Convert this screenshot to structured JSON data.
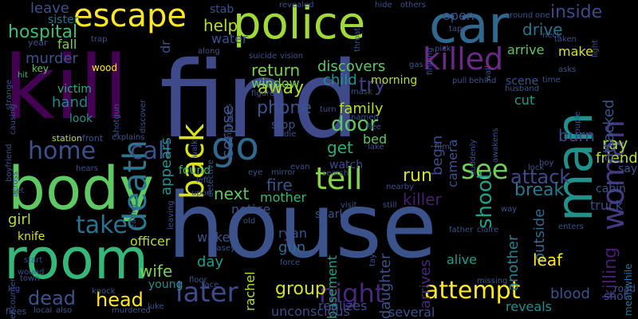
{
  "background": "#000000",
  "words": [
    {
      "text": "find",
      "color": "#3f4a8a"
    },
    {
      "text": "house",
      "color": "#3b528b"
    },
    {
      "text": "kill",
      "color": "#440154"
    },
    {
      "text": "body",
      "color": "#5ec962"
    },
    {
      "text": "room",
      "color": "#35b779"
    },
    {
      "text": "car",
      "color": "#31688e"
    },
    {
      "text": "police",
      "color": "#a0da39"
    },
    {
      "text": "man",
      "color": "#21918c"
    },
    {
      "text": "escape",
      "color": "#fde725"
    },
    {
      "text": "go",
      "color": "#31688e"
    },
    {
      "text": "back",
      "color": "#d8e219"
    },
    {
      "text": "killed",
      "color": "#6b2a85"
    },
    {
      "text": "death",
      "color": "#2a788e"
    },
    {
      "text": "woman",
      "color": "#443a83"
    },
    {
      "text": "tell",
      "color": "#86d549"
    },
    {
      "text": "later",
      "color": "#3e4a89"
    },
    {
      "text": "call",
      "color": "#3b528b"
    },
    {
      "text": "home",
      "color": "#3b528b"
    },
    {
      "text": "take",
      "color": "#2c728e"
    },
    {
      "text": "see",
      "color": "#6ece58"
    },
    {
      "text": "night",
      "color": "#482878"
    },
    {
      "text": "attempt",
      "color": "#fde725"
    },
    {
      "text": "head",
      "color": "#fde725"
    },
    {
      "text": "dead",
      "color": "#3b528b"
    },
    {
      "text": "door",
      "color": "#5ec962"
    },
    {
      "text": "shoot",
      "color": "#1fa088"
    },
    {
      "text": "group",
      "color": "#d8e219"
    },
    {
      "text": "run",
      "color": "#d8e219"
    },
    {
      "text": "attack",
      "color": "#3e4a89"
    },
    {
      "text": "away",
      "color": "#b5de2b"
    },
    {
      "text": "try",
      "color": "#433e85"
    },
    {
      "text": "return",
      "color": "#7ad151"
    },
    {
      "text": "discovers",
      "color": "#5ec962"
    },
    {
      "text": "get",
      "color": "#29af7f"
    },
    {
      "text": "hospital",
      "color": "#3dbc74"
    },
    {
      "text": "murder",
      "color": "#3b528b"
    },
    {
      "text": "hand",
      "color": "#26828e"
    },
    {
      "text": "inside",
      "color": "#3e4a89"
    },
    {
      "text": "drive",
      "color": "#2c728e"
    },
    {
      "text": "help",
      "color": "#b5de2b"
    },
    {
      "text": "leave",
      "color": "#3b528b"
    },
    {
      "text": "phone",
      "color": "#3b528b"
    },
    {
      "text": "corpse",
      "color": "#3b528b"
    },
    {
      "text": "appears",
      "color": "#21918c"
    },
    {
      "text": "girl",
      "color": "#b5de2b"
    },
    {
      "text": "killer",
      "color": "#481f70"
    },
    {
      "text": "break",
      "color": "#2a788e"
    },
    {
      "text": "next",
      "color": "#5ec962"
    },
    {
      "text": "fire",
      "color": "#3b528b"
    },
    {
      "text": "mother",
      "color": "#35b779"
    },
    {
      "text": "wife",
      "color": "#7ad151"
    },
    {
      "text": "killing",
      "color": "#481f70"
    },
    {
      "text": "friend",
      "color": "#b5de2b"
    },
    {
      "text": "ray",
      "color": "#a0da39"
    },
    {
      "text": "attacked",
      "color": "#3b528b"
    },
    {
      "text": "make",
      "color": "#d8e219"
    },
    {
      "text": "arrive",
      "color": "#5ec962"
    },
    {
      "text": "burn",
      "color": "#3e4a89"
    },
    {
      "text": "outside",
      "color": "#31688e"
    },
    {
      "text": "another",
      "color": "#26828e"
    },
    {
      "text": "daughter",
      "color": "#3b528b"
    },
    {
      "text": "arrives",
      "color": "#482878"
    },
    {
      "text": "begin",
      "color": "#3e4a89"
    },
    {
      "text": "camera",
      "color": "#3b528b"
    },
    {
      "text": "leaf",
      "color": "#fde725"
    },
    {
      "text": "alive",
      "color": "#1f9e89"
    },
    {
      "text": "blood",
      "color": "#3b528b"
    },
    {
      "text": "truck",
      "color": "#3e4a89"
    },
    {
      "text": "cut",
      "color": "#1fa088"
    },
    {
      "text": "scene",
      "color": "#3b528b"
    },
    {
      "text": "child",
      "color": "#21918c"
    },
    {
      "text": "family",
      "color": "#b5de2b"
    },
    {
      "text": "morning",
      "color": "#b5de2b"
    },
    {
      "text": "window",
      "color": "#6ece58"
    },
    {
      "text": "stop",
      "color": "#3b528b"
    },
    {
      "text": "watch",
      "color": "#3e4a89"
    },
    {
      "text": "bed",
      "color": "#5ec962"
    },
    {
      "text": "open",
      "color": "#3b528b"
    },
    {
      "text": "officer",
      "color": "#b5de2b"
    },
    {
      "text": "day",
      "color": "#1f9e89"
    },
    {
      "text": "wake",
      "color": "#3b528b"
    },
    {
      "text": "notice",
      "color": "#3b528b"
    },
    {
      "text": "shark",
      "color": "#3b528b"
    },
    {
      "text": "gun",
      "color": "#31688e"
    },
    {
      "text": "ryan",
      "color": "#3b528b"
    },
    {
      "text": "rachel",
      "color": "#b5de2b"
    },
    {
      "text": "basement",
      "color": "#1fa088"
    },
    {
      "text": "found",
      "color": "#35b779"
    },
    {
      "text": "young",
      "color": "#21918c"
    },
    {
      "text": "several",
      "color": "#3b528b"
    },
    {
      "text": "realizes",
      "color": "#3e4a89"
    },
    {
      "text": "unconscious",
      "color": "#3e4a89"
    },
    {
      "text": "reveals",
      "color": "#21918c"
    },
    {
      "text": "knife",
      "color": "#d8e219"
    },
    {
      "text": "victim",
      "color": "#29af7f"
    },
    {
      "text": "look",
      "color": "#21918c"
    },
    {
      "text": "fall",
      "color": "#7ad151"
    },
    {
      "text": "water",
      "color": "#3b528b"
    },
    {
      "text": "stab",
      "color": "#3b528b"
    },
    {
      "text": "sister",
      "color": "#2c728e"
    },
    {
      "text": "dr",
      "color": "#3b528b"
    },
    {
      "text": "say",
      "color": "#3b528b"
    },
    {
      "text": "cabin",
      "color": "#3b528b"
    },
    {
      "text": "meanwhile",
      "color": "#2c728e"
    },
    {
      "text": "shot",
      "color": "#3b528b"
    },
    {
      "text": "road",
      "color": "#3b528b"
    },
    {
      "text": "wood",
      "color": "#fde725"
    },
    {
      "text": "key",
      "color": "#5ec962"
    },
    {
      "text": "hit",
      "color": "#35b779"
    },
    {
      "text": "year",
      "color": "#3b528b"
    },
    {
      "text": "strange",
      "color": "#3b528b"
    },
    {
      "text": "causing",
      "color": "#3b528b"
    },
    {
      "text": "boyfriend",
      "color": "#3b528b"
    },
    {
      "text": "station",
      "color": "#b5de2b"
    },
    {
      "text": "front",
      "color": "#3b528b"
    },
    {
      "text": "explains",
      "color": "#3b528b"
    },
    {
      "text": "across",
      "color": "#3b528b"
    },
    {
      "text": "hears",
      "color": "#3b528b"
    },
    {
      "text": "set",
      "color": "#3b528b"
    },
    {
      "text": "earlier",
      "color": "#3b528b"
    },
    {
      "text": "leaving",
      "color": "#3b528b"
    },
    {
      "text": "upon",
      "color": "#3b528b"
    },
    {
      "text": "encounter",
      "color": "#3b528b"
    },
    {
      "text": "start",
      "color": "#3b528b"
    },
    {
      "text": "wound",
      "color": "#3b528b"
    },
    {
      "text": "town",
      "color": "#3b528b"
    },
    {
      "text": "leg",
      "color": "#3b528b"
    },
    {
      "text": "flees",
      "color": "#3b528b"
    },
    {
      "text": "local",
      "color": "#3b528b"
    },
    {
      "text": "also",
      "color": "#3b528b"
    },
    {
      "text": "knock",
      "color": "#3b528b"
    },
    {
      "text": "murdered",
      "color": "#3b528b"
    },
    {
      "text": "luke",
      "color": "#3b528b"
    },
    {
      "text": "floor",
      "color": "#3b528b"
    },
    {
      "text": "face",
      "color": "#3b528b"
    },
    {
      "text": "casey",
      "color": "#3b528b"
    },
    {
      "text": "force",
      "color": "#3b528b"
    },
    {
      "text": "old",
      "color": "#3b528b"
    },
    {
      "text": "taylor",
      "color": "#3b528b"
    },
    {
      "text": "still",
      "color": "#3b528b"
    },
    {
      "text": "visit",
      "color": "#3b528b"
    },
    {
      "text": "nearby",
      "color": "#3b528b"
    },
    {
      "text": "father",
      "color": "#3b528b"
    },
    {
      "text": "claire",
      "color": "#3b528b"
    },
    {
      "text": "enters",
      "color": "#3b528b"
    },
    {
      "text": "way",
      "color": "#3b528b"
    },
    {
      "text": "missing",
      "color": "#3b528b"
    },
    {
      "text": "lock",
      "color": "#3b528b"
    },
    {
      "text": "boy",
      "color": "#3b528b"
    },
    {
      "text": "couple",
      "color": "#3b528b"
    },
    {
      "text": "time",
      "color": "#3b528b"
    },
    {
      "text": "asks",
      "color": "#3b528b"
    },
    {
      "text": "husband",
      "color": "#3b528b"
    },
    {
      "text": "behind",
      "color": "#3b528b"
    },
    {
      "text": "pull",
      "color": "#3b528b"
    },
    {
      "text": "suddenly",
      "color": "#3b528b"
    },
    {
      "text": "awakens",
      "color": "#3b528b"
    },
    {
      "text": "film",
      "color": "#3b528b"
    },
    {
      "text": "lake",
      "color": "#3b528b"
    },
    {
      "text": "flee",
      "color": "#3b528b"
    },
    {
      "text": "named",
      "color": "#3b528b"
    },
    {
      "text": "turn",
      "color": "#3b528b"
    },
    {
      "text": "mask",
      "color": "#3b528b"
    },
    {
      "text": "gas",
      "color": "#3b528b"
    },
    {
      "text": "finding",
      "color": "#3b528b"
    },
    {
      "text": "pick",
      "color": "#3b528b"
    },
    {
      "text": "tape",
      "color": "#3b528b"
    },
    {
      "text": "wall",
      "color": "#3b528b"
    },
    {
      "text": "neck",
      "color": "#3b528b"
    },
    {
      "text": "taken",
      "color": "#3b528b"
    },
    {
      "text": "light",
      "color": "#3b528b"
    },
    {
      "text": "one",
      "color": "#3b528b"
    },
    {
      "text": "hide",
      "color": "#3b528b"
    },
    {
      "text": "others",
      "color": "#3b528b"
    },
    {
      "text": "throat",
      "color": "#3b528b"
    },
    {
      "text": "revealed",
      "color": "#3b528b"
    },
    {
      "text": "trap",
      "color": "#3b528b"
    },
    {
      "text": "along",
      "color": "#3b528b"
    },
    {
      "text": "suicide",
      "color": "#3b528b"
    },
    {
      "text": "vision",
      "color": "#3b528b"
    },
    {
      "text": "manages",
      "color": "#3b528b"
    },
    {
      "text": "figure",
      "color": "#3b528b"
    },
    {
      "text": "discover",
      "color": "#3b528b"
    },
    {
      "text": "shotgun",
      "color": "#3b528b"
    },
    {
      "text": "walk",
      "color": "#3b528b"
    },
    {
      "text": "detective",
      "color": "#3b528b"
    },
    {
      "text": "eye",
      "color": "#3b528b"
    },
    {
      "text": "mirror",
      "color": "#3b528b"
    },
    {
      "text": "evan",
      "color": "#3b528b"
    },
    {
      "text": "die",
      "color": "#3b528b"
    },
    {
      "text": "search",
      "color": "#3b528b"
    },
    {
      "text": "left",
      "color": "#3b528b"
    },
    {
      "text": "around",
      "color": "#3b528b"
    }
  ]
}
